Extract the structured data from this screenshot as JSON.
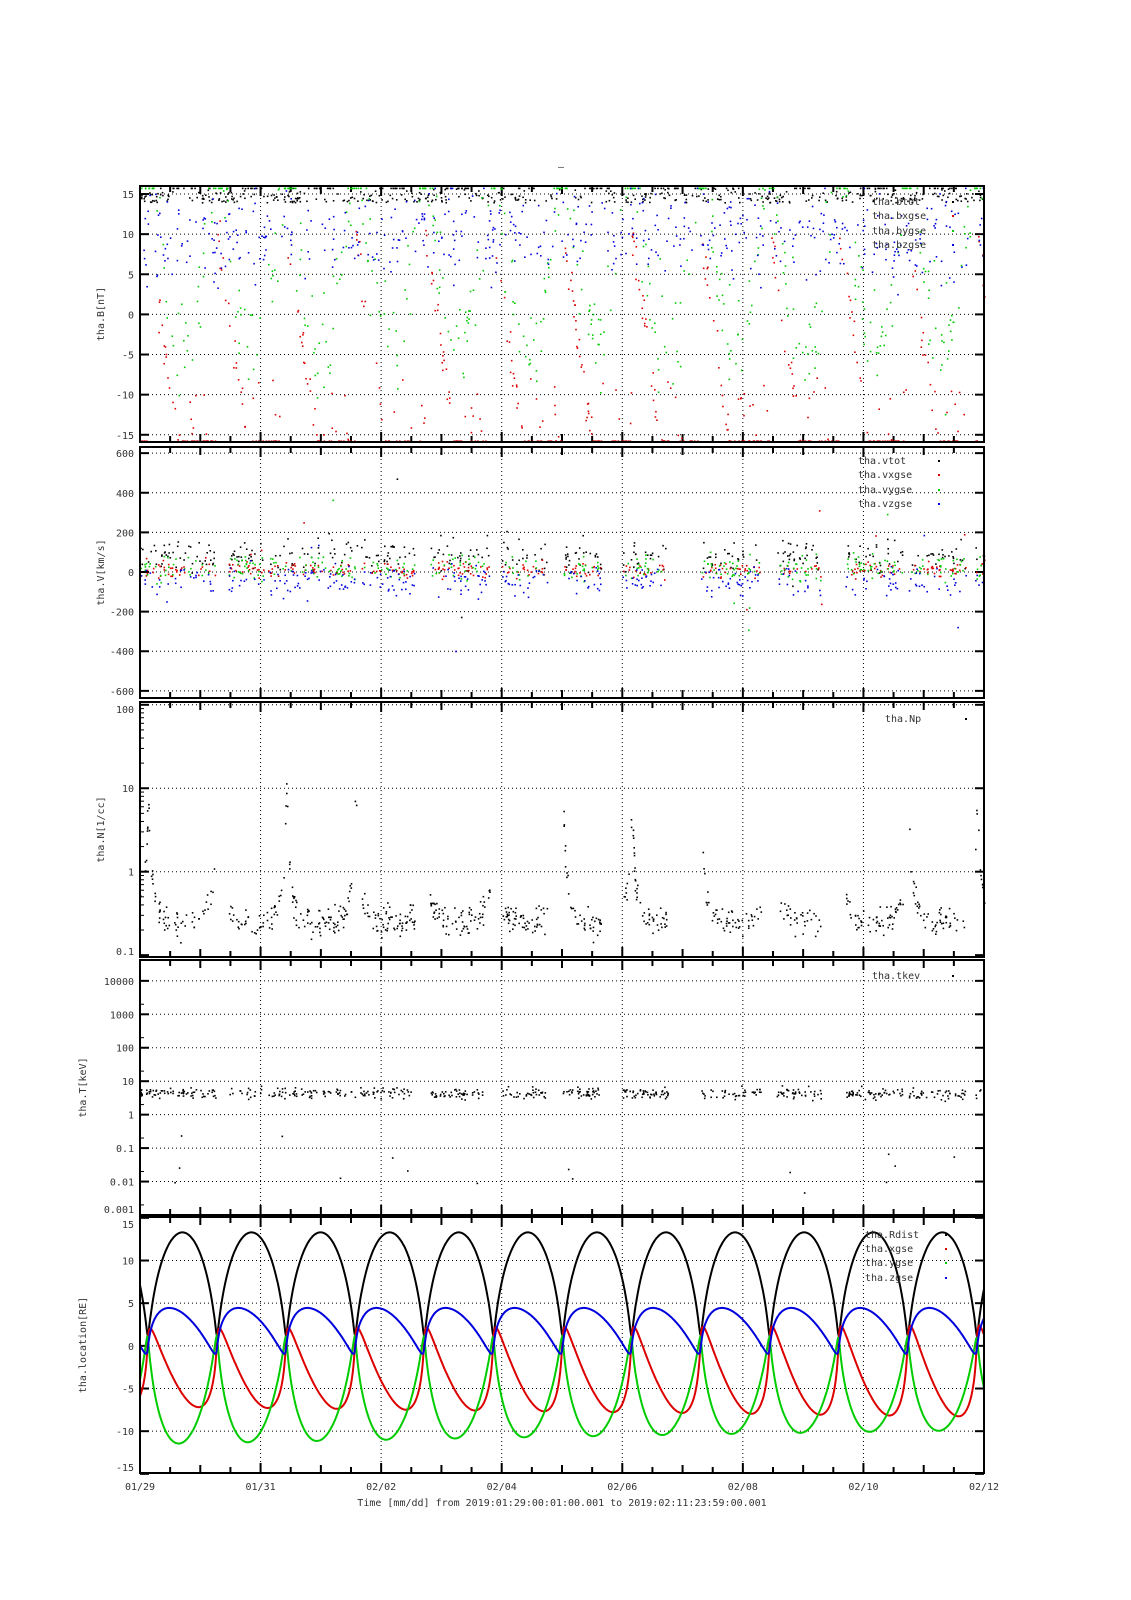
{
  "chart_data": {
    "type": "scatter",
    "title": "–",
    "xlabel": "Time [mm/dd]  from 2019:01:29:00:01:00.001  to  2019:02:11:23:59:00.001",
    "x_unit": "days since 2019-01-29",
    "xlim": [
      0,
      14
    ],
    "x_ticks": [
      {
        "v": 0,
        "label": "01/29"
      },
      {
        "v": 2,
        "label": "01/31"
      },
      {
        "v": 4,
        "label": "02/02"
      },
      {
        "v": 6,
        "label": "02/04"
      },
      {
        "v": 8,
        "label": "02/06"
      },
      {
        "v": 10,
        "label": "02/08"
      },
      {
        "v": 12,
        "label": "02/10"
      },
      {
        "v": 14,
        "label": "02/12"
      }
    ],
    "orbit": {
      "period_days": 1.146,
      "first_perigee_day": 0.13,
      "perigee_RE": 1.2,
      "apogee_RE": 13.3
    },
    "panels": [
      {
        "id": "B",
        "ylabel": "tha.B[nT]",
        "scale": "linear",
        "ylim": [
          -15.9,
          16
        ],
        "yticks": [
          {
            "v": 15,
            "label": "15"
          },
          {
            "v": 10,
            "label": "10"
          },
          {
            "v": 5,
            "label": "5"
          },
          {
            "v": 0,
            "label": "0"
          },
          {
            "v": -5,
            "label": "-5"
          },
          {
            "v": -10,
            "label": "-10"
          },
          {
            "v": -15,
            "label": "-15"
          }
        ],
        "series": [
          {
            "name": "tha.btot",
            "color": "#000000",
            "model": {
              "kind": "bt",
              "base": 14,
              "spread": 4
            }
          },
          {
            "name": "tha.bxgse",
            "color": "#dd0000",
            "model": {
              "kind": "bx",
              "base": 10,
              "spread": 2
            }
          },
          {
            "name": "tha.bygse",
            "color": "#00cc00",
            "model": {
              "kind": "by",
              "base": 2,
              "spread": 5
            }
          },
          {
            "name": "tha.bzgse",
            "color": "#0000dd",
            "model": {
              "kind": "bz",
              "base": 10,
              "spread": 4
            }
          }
        ]
      },
      {
        "id": "V",
        "ylabel": "tha.V[km/s]",
        "scale": "linear",
        "ylim": [
          -636,
          631
        ],
        "yticks": [
          {
            "v": 600,
            "label": "600"
          },
          {
            "v": 400,
            "label": "400"
          },
          {
            "v": 200,
            "label": "200"
          },
          {
            "v": 0,
            "label": "0"
          },
          {
            "v": -200,
            "label": "-200"
          },
          {
            "v": -400,
            "label": "-400"
          },
          {
            "v": -600,
            "label": "-600"
          }
        ],
        "series": [
          {
            "name": "tha.vtot",
            "color": "#000000",
            "model": {
              "kind": "v",
              "base": 90,
              "spread": 55
            }
          },
          {
            "name": "tha.vxgse",
            "color": "#dd0000",
            "model": {
              "kind": "v",
              "base": 15,
              "spread": 30
            }
          },
          {
            "name": "tha.vygse",
            "color": "#00cc00",
            "model": {
              "kind": "v",
              "base": 25,
              "spread": 45
            }
          },
          {
            "name": "tha.vzgse",
            "color": "#0000dd",
            "model": {
              "kind": "v",
              "base": -40,
              "spread": 55
            }
          }
        ]
      },
      {
        "id": "N",
        "ylabel": "tha.N[1/cc]",
        "scale": "log",
        "ylim": [
          0.095,
          108
        ],
        "yticks": [
          {
            "v": 100,
            "label": "100"
          },
          {
            "v": 10,
            "label": "10"
          },
          {
            "v": 1,
            "label": "1"
          },
          {
            "v": 0.1,
            "label": "0.1"
          }
        ],
        "series": [
          {
            "name": "tha.Np",
            "color": "#000000",
            "model": {
              "kind": "n",
              "base": 0.18,
              "spread": 0.12
            }
          }
        ]
      },
      {
        "id": "T",
        "ylabel": "tha.T[keV]",
        "scale": "log",
        "ylim": [
          0.001,
          42000
        ],
        "yticks": [
          {
            "v": 10000,
            "label": "10000"
          },
          {
            "v": 1000,
            "label": "1000"
          },
          {
            "v": 100,
            "label": "100"
          },
          {
            "v": 10,
            "label": "10"
          },
          {
            "v": 1,
            "label": "1"
          },
          {
            "v": 0.1,
            "label": "0.1"
          },
          {
            "v": 0.01,
            "label": "0.01"
          },
          {
            "v": 0.001,
            "label": "0.001"
          }
        ],
        "series": [
          {
            "name": "tha.tkev",
            "color": "#000000",
            "model": {
              "kind": "t",
              "base": 4.5,
              "spread": 0.12
            }
          }
        ]
      },
      {
        "id": "loc",
        "ylabel": "tha.location[RE]",
        "scale": "linear",
        "ylim": [
          -14.9,
          15.1
        ],
        "yticks": [
          {
            "v": 15,
            "label": "15"
          },
          {
            "v": 10,
            "label": "10"
          },
          {
            "v": 5,
            "label": "5"
          },
          {
            "v": 0,
            "label": "0"
          },
          {
            "v": -5,
            "label": "-5"
          },
          {
            "v": -10,
            "label": "-10"
          },
          {
            "v": -15,
            "label": "-15"
          }
        ],
        "series": [
          {
            "name": "tha.Rdist",
            "color": "#000000",
            "model": {
              "kind": "r"
            }
          },
          {
            "name": "tha.xgse",
            "color": "#dd0000",
            "model": {
              "kind": "x"
            }
          },
          {
            "name": "tha.ygse",
            "color": "#00cc00",
            "model": {
              "kind": "y"
            }
          },
          {
            "name": "tha.zgse",
            "color": "#0000dd",
            "model": {
              "kind": "z"
            }
          }
        ]
      }
    ],
    "plasma_data_intervals_days": [
      [
        0.0,
        1.25
      ],
      [
        1.45,
        2.05
      ],
      [
        2.1,
        3.6
      ],
      [
        3.65,
        4.55
      ],
      [
        4.8,
        5.8
      ],
      [
        6.0,
        6.75
      ],
      [
        7.0,
        7.65
      ],
      [
        8.0,
        8.75
      ],
      [
        9.3,
        10.3
      ],
      [
        10.55,
        11.3
      ],
      [
        11.7,
        12.65
      ],
      [
        12.75,
        13.7
      ],
      [
        13.85,
        14.0
      ]
    ]
  }
}
